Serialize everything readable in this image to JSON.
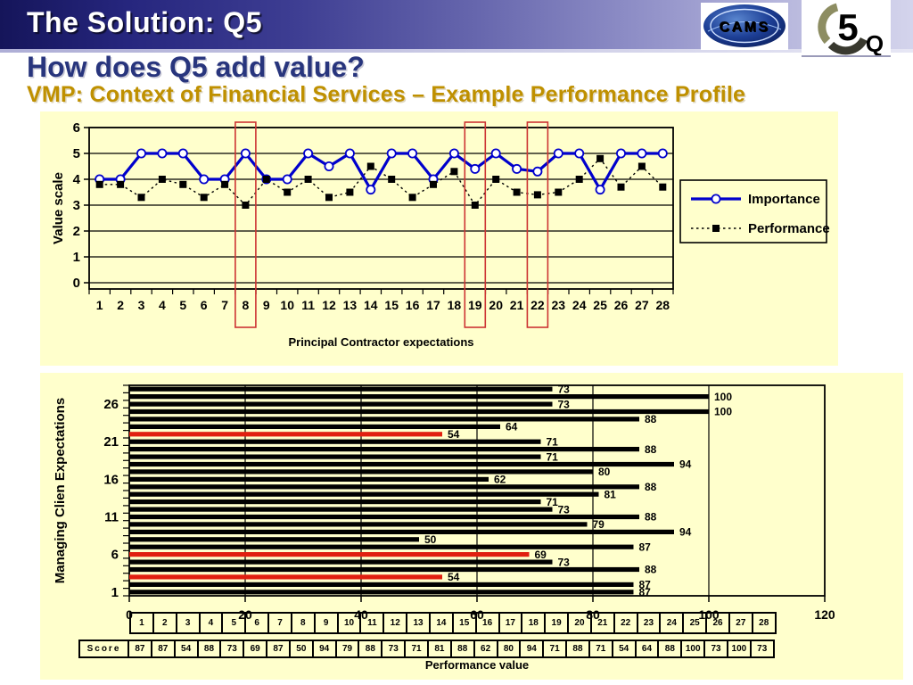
{
  "banner": {
    "title": "The Solution: Q5",
    "logo_cams_text": "CAMS",
    "logo_q5_text_5": "5",
    "logo_q5_text_q": "Q"
  },
  "headings": {
    "line1": "How does Q5 add value?",
    "line2": "VMP: Context of Financial Services – Example Performance Profile"
  },
  "colors": {
    "panel_bg": "#FFFFCC",
    "heading_navy": "#28357D",
    "heading_gold": "#BF9000",
    "importance_blue": "#0000CC",
    "bar_black": "#000000",
    "bar_red": "#E02010",
    "highlight_box_red": "#CC3333"
  },
  "chart_data": [
    {
      "type": "line",
      "title": "",
      "xlabel": "Principal Contractor expectations",
      "ylabel": "Value scale",
      "ylim": [
        0,
        6
      ],
      "yticks": [
        0,
        1,
        2,
        3,
        4,
        5,
        6
      ],
      "grid": "horizontal",
      "legend_position": "right",
      "categories": [
        1,
        2,
        3,
        4,
        5,
        6,
        7,
        8,
        9,
        10,
        11,
        12,
        13,
        14,
        15,
        16,
        17,
        18,
        19,
        20,
        21,
        22,
        23,
        24,
        25,
        26,
        27,
        28
      ],
      "highlighted_categories": [
        8,
        19,
        22
      ],
      "series": [
        {
          "name": "Importance",
          "color": "#0000CC",
          "marker": "circle",
          "line_style": "solid",
          "values": [
            4,
            4,
            5,
            5,
            5,
            4,
            4,
            5,
            4,
            4,
            5,
            4.5,
            5,
            3.6,
            5,
            5,
            4,
            5,
            4.4,
            5,
            4.4,
            4.3,
            5,
            5,
            3.6,
            5,
            5,
            5
          ]
        },
        {
          "name": "Performance",
          "color": "#000000",
          "marker": "square",
          "line_style": "dashed",
          "values": [
            3.8,
            3.8,
            3.3,
            4,
            3.8,
            3.3,
            3.8,
            3,
            4,
            3.5,
            4,
            3.3,
            3.5,
            4.5,
            4,
            3.3,
            3.8,
            4.3,
            3,
            4,
            3.5,
            3.4,
            3.5,
            4,
            4.8,
            3.7,
            4.5,
            3.7
          ]
        }
      ]
    },
    {
      "type": "bar",
      "orientation": "horizontal",
      "xlabel": "Performance value",
      "ylabel": "Managing Clien Expectations",
      "xlim": [
        0,
        120
      ],
      "xticks": [
        0,
        20,
        40,
        60,
        80,
        100,
        120
      ],
      "ytick_labels": [
        1,
        6,
        11,
        16,
        21,
        26
      ],
      "grid": "vertical",
      "value_labels": true,
      "categories": [
        1,
        2,
        3,
        4,
        5,
        6,
        7,
        8,
        9,
        10,
        11,
        12,
        13,
        14,
        15,
        16,
        17,
        18,
        19,
        20,
        21,
        22,
        23,
        24,
        25,
        26,
        27,
        28
      ],
      "values": [
        87,
        87,
        54,
        88,
        73,
        69,
        87,
        50,
        94,
        79,
        88,
        73,
        71,
        81,
        88,
        62,
        80,
        94,
        71,
        88,
        71,
        54,
        64,
        88,
        100,
        73,
        100,
        73
      ],
      "highlighted_categories": [
        3,
        6,
        22
      ],
      "bar_color": "#000000",
      "highlight_color": "#E02010"
    }
  ],
  "score_table": {
    "row_header": "Score",
    "columns": [
      "1",
      "2",
      "3",
      "4",
      "5",
      "6",
      "7",
      "8",
      "9",
      "10",
      "11",
      "12",
      "13",
      "14",
      "15",
      "16",
      "17",
      "18",
      "19",
      "20",
      "21",
      "22",
      "23",
      "24",
      "25",
      "26",
      "27",
      "28"
    ],
    "scores": [
      87,
      87,
      54,
      88,
      73,
      69,
      87,
      50,
      94,
      79,
      88,
      73,
      71,
      81,
      88,
      62,
      80,
      94,
      71,
      88,
      71,
      54,
      64,
      88,
      100,
      73,
      100,
      73
    ]
  }
}
